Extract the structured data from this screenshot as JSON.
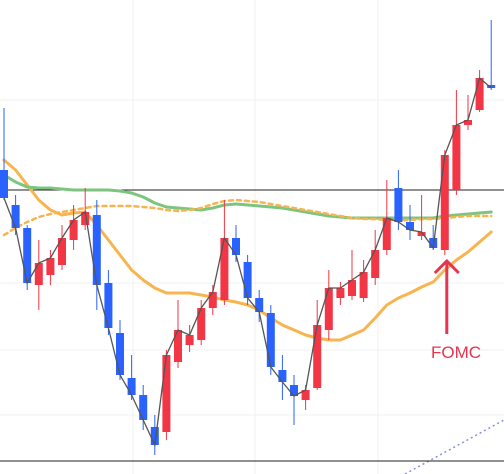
{
  "chart_data": {
    "type": "candlestick",
    "ylim": [
      0,
      474
    ],
    "up_color": "#f23645",
    "down_color": "#2962ff",
    "open": [
      304,
      269,
      246,
      189,
      199,
      209,
      234,
      249,
      259,
      191,
      141,
      96,
      79,
      47,
      42,
      112,
      129,
      134,
      166,
      174,
      236,
      212,
      176,
      161,
      104,
      89,
      74,
      86,
      144,
      176,
      178,
      176,
      196,
      224,
      286,
      252,
      238,
      236,
      224,
      284,
      349,
      364,
      389
    ],
    "high": [
      366,
      279,
      249,
      234,
      224,
      249,
      269,
      286,
      274,
      204,
      154,
      119,
      89,
      59,
      124,
      174,
      149,
      174,
      189,
      274,
      249,
      219,
      184,
      169,
      119,
      99,
      89,
      174,
      204,
      192,
      224,
      214,
      244,
      294,
      304,
      269,
      279,
      249,
      324,
      384,
      379,
      404,
      454
    ],
    "low": [
      274,
      239,
      184,
      164,
      189,
      204,
      224,
      244,
      164,
      139,
      94,
      74,
      44,
      19,
      34,
      106,
      122,
      129,
      159,
      169,
      212,
      169,
      152,
      99,
      74,
      49,
      64,
      84,
      134,
      169,
      174,
      172,
      189,
      219,
      244,
      234,
      234,
      224,
      219,
      279,
      344,
      362,
      384
    ],
    "close": [
      276,
      246,
      191,
      211,
      216,
      236,
      254,
      262,
      189,
      146,
      99,
      79,
      54,
      29,
      119,
      144,
      139,
      166,
      182,
      236,
      219,
      176,
      162,
      107,
      92,
      78,
      84,
      149,
      186,
      186,
      194,
      202,
      224,
      256,
      252,
      244,
      242,
      226,
      319,
      349,
      354,
      396,
      386
    ],
    "close_line_color": "#555555",
    "lines": [
      {
        "color": "#f7b44f",
        "dashed": false,
        "values": [
          314,
          304,
          289,
          274,
          264,
          259,
          261,
          262,
          249,
          234,
          219,
          204,
          194,
          186,
          181,
          181,
          181,
          179,
          177,
          174,
          172,
          169,
          164,
          156,
          149,
          144,
          139,
          136,
          134,
          134,
          139,
          144,
          156,
          169,
          176,
          181,
          187,
          192,
          204,
          214,
          222,
          232,
          242
        ]
      },
      {
        "color": "#7dc47f",
        "dashed": false,
        "values": [
          299,
          292,
          287,
          286,
          286,
          285,
          284,
          284,
          284,
          284,
          283,
          281,
          277,
          271,
          267,
          266,
          265,
          264,
          266,
          269,
          270,
          269,
          268,
          267,
          266,
          264,
          262,
          260,
          258,
          257,
          256,
          256,
          256,
          256,
          256,
          256,
          256,
          256,
          258,
          259,
          260,
          261,
          262
        ]
      },
      {
        "color": "#f7b44f",
        "dashed": true,
        "values": [
          239,
          246,
          252,
          257,
          260,
          262,
          264,
          266,
          268,
          268,
          268,
          268,
          267,
          266,
          264,
          263,
          264,
          266,
          270,
          273,
          274,
          273,
          272,
          270,
          268,
          266,
          264,
          262,
          260,
          258,
          256,
          255,
          255,
          254,
          254,
          254,
          255,
          255,
          256,
          257,
          258,
          258,
          258
        ]
      }
    ],
    "levels": [
      284,
      13
    ],
    "annotation": {
      "text": "FOMC",
      "color": "#e8344e"
    }
  }
}
